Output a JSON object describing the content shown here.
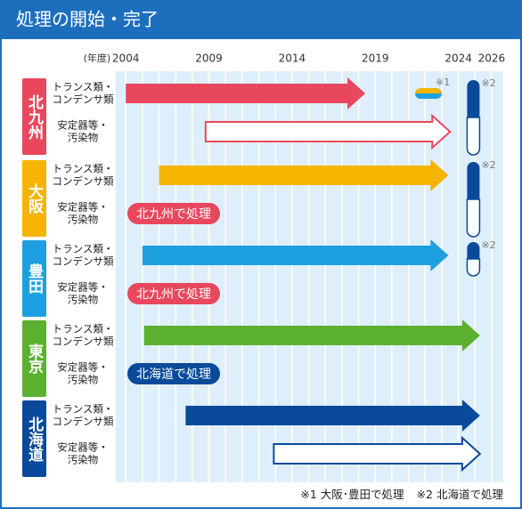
{
  "title": "処理の開始・完了",
  "axis": {
    "unit": "(年度)",
    "ticks": [
      2004,
      2009,
      2014,
      2019,
      2024,
      2026
    ],
    "lim": [
      2003.4,
      2026.7
    ]
  },
  "row_labels": [
    [
      "トランス類・",
      "コンデンサ類"
    ],
    [
      "安定器等・",
      "汚染物"
    ]
  ],
  "notes": [
    {
      "mark": "※1",
      "text": "大阪･豊田で処理"
    },
    {
      "mark": "※2",
      "text": "北海道で処理"
    }
  ],
  "regions": [
    {
      "name": "北九州",
      "color": "#e8475d",
      "rows": [
        {
          "start": 2004,
          "end": 2018.4,
          "style": "solid"
        },
        {
          "start": 2008.8,
          "end": 2023.5,
          "style": "outline"
        }
      ],
      "markers": [
        {
          "year": 2022.2,
          "note": 0,
          "kind": "h"
        },
        {
          "year": 2024.9,
          "note": 1,
          "kind": "both"
        }
      ]
    },
    {
      "name": "大阪",
      "color": "#f5b400",
      "rows": [
        {
          "start": 2006,
          "end": 2023.4,
          "style": "solid"
        },
        {
          "badge": "北九州で処理",
          "badge_color": "#e8475d"
        }
      ],
      "markers": [
        {
          "year": 2024.9,
          "note": 1,
          "kind": "both"
        }
      ]
    },
    {
      "name": "豊田",
      "color": "#1ea0e0",
      "rows": [
        {
          "start": 2005,
          "end": 2023.4,
          "style": "solid"
        },
        {
          "badge": "北九州で処理",
          "badge_color": "#e8475d"
        }
      ],
      "markers": [
        {
          "year": 2024.9,
          "note": 1,
          "kind": "top"
        }
      ]
    },
    {
      "name": "東京",
      "color": "#5bb030",
      "rows": [
        {
          "start": 2005.1,
          "end": 2025.3,
          "style": "solid"
        },
        {
          "badge": "北海道で処理",
          "badge_color": "#0a4a9a"
        }
      ],
      "markers": []
    },
    {
      "name": "北海道",
      "color": "#0a4a9a",
      "rows": [
        {
          "start": 2007.6,
          "end": 2025.3,
          "style": "solid"
        },
        {
          "start": 2012.9,
          "end": 2025.3,
          "style": "outline"
        }
      ],
      "markers": []
    }
  ]
}
